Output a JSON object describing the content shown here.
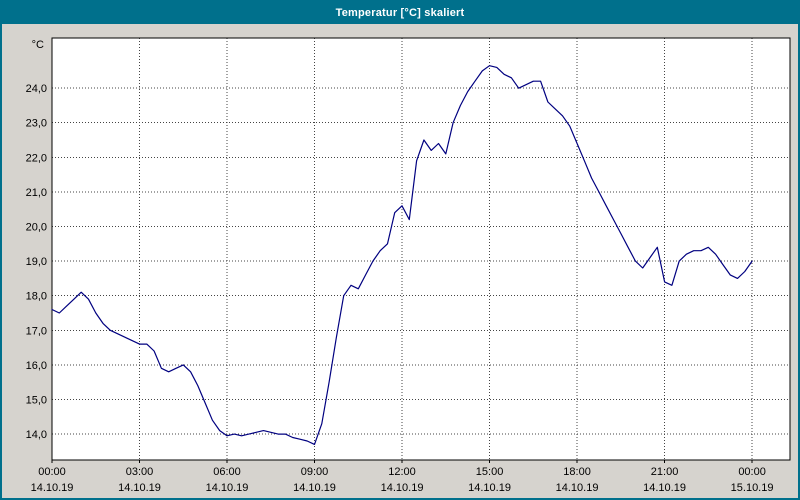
{
  "window": {
    "title": "Temperatur [°C] skaliert",
    "titlebar_color": "#00708c",
    "background_color": "#d6d3ce"
  },
  "chart_data": {
    "type": "line",
    "title": "Temperatur [°C] skaliert",
    "ylabel": "°C",
    "grid": true,
    "legend": "none",
    "line_color": "#000080",
    "plot_background": "#ffffff",
    "xlim_hours": [
      0,
      25.3
    ],
    "ylim": [
      13.25,
      25.45
    ],
    "y_ticks": [
      14,
      15,
      16,
      17,
      18,
      19,
      20,
      21,
      22,
      23,
      24
    ],
    "y_tick_labels": [
      "14,0",
      "15,0",
      "16,0",
      "17,0",
      "18,0",
      "19,0",
      "20,0",
      "21,0",
      "22,0",
      "23,0",
      "24,0"
    ],
    "x_ticks_hours": [
      0,
      3,
      6,
      9,
      12,
      15,
      18,
      21,
      24
    ],
    "x_tick_time_labels": [
      "00:00",
      "03:00",
      "06:00",
      "09:00",
      "12:00",
      "15:00",
      "18:00",
      "21:00",
      "00:00"
    ],
    "x_tick_date_labels": [
      "14.10.19",
      "14.10.19",
      "14.10.19",
      "14.10.19",
      "14.10.19",
      "14.10.19",
      "14.10.19",
      "14.10.19",
      "15.10.19"
    ],
    "series": [
      {
        "name": "Temperatur",
        "x_hours": [
          0,
          0.25,
          0.5,
          0.75,
          1,
          1.25,
          1.5,
          1.75,
          2,
          2.5,
          3,
          3.25,
          3.5,
          3.75,
          4,
          4.25,
          4.5,
          4.75,
          5,
          5.25,
          5.5,
          5.75,
          6,
          6.25,
          6.5,
          6.75,
          7,
          7.25,
          7.5,
          7.75,
          8,
          8.25,
          8.5,
          8.75,
          9,
          9.25,
          9.5,
          9.75,
          10,
          10.25,
          10.5,
          10.75,
          11,
          11.25,
          11.5,
          11.75,
          12,
          12.25,
          12.5,
          12.75,
          13,
          13.25,
          13.5,
          13.75,
          14,
          14.25,
          14.5,
          14.75,
          15,
          15.25,
          15.5,
          15.75,
          16,
          16.25,
          16.5,
          16.75,
          17,
          17.25,
          17.5,
          17.75,
          18,
          18.25,
          18.5,
          18.75,
          19,
          19.25,
          19.5,
          19.75,
          20,
          20.25,
          20.5,
          20.75,
          21,
          21.25,
          21.5,
          21.75,
          22,
          22.25,
          22.5,
          22.75,
          23,
          23.25,
          23.5,
          23.75,
          24
        ],
        "values": [
          17.6,
          17.5,
          17.7,
          17.9,
          18.1,
          17.9,
          17.5,
          17.2,
          17.0,
          16.8,
          16.6,
          16.6,
          16.4,
          15.9,
          15.8,
          15.9,
          16.0,
          15.8,
          15.4,
          14.9,
          14.4,
          14.1,
          13.95,
          14.0,
          13.95,
          14.0,
          14.05,
          14.1,
          14.05,
          14.0,
          14.0,
          13.9,
          13.85,
          13.8,
          13.7,
          14.3,
          15.5,
          16.8,
          18.0,
          18.3,
          18.2,
          18.6,
          19.0,
          19.3,
          19.5,
          20.4,
          20.6,
          20.2,
          21.9,
          22.5,
          22.2,
          22.4,
          22.1,
          23.0,
          23.5,
          23.9,
          24.2,
          24.5,
          24.65,
          24.6,
          24.4,
          24.3,
          24.0,
          24.1,
          24.2,
          24.2,
          23.6,
          23.4,
          23.2,
          22.9,
          22.4,
          21.9,
          21.4,
          21.0,
          20.6,
          20.2,
          19.8,
          19.4,
          19.0,
          18.8,
          19.1,
          19.4,
          18.4,
          18.3,
          19.0,
          19.2,
          19.3,
          19.3,
          19.4,
          19.2,
          18.9,
          18.6,
          18.5,
          18.7,
          19.0
        ]
      }
    ]
  }
}
